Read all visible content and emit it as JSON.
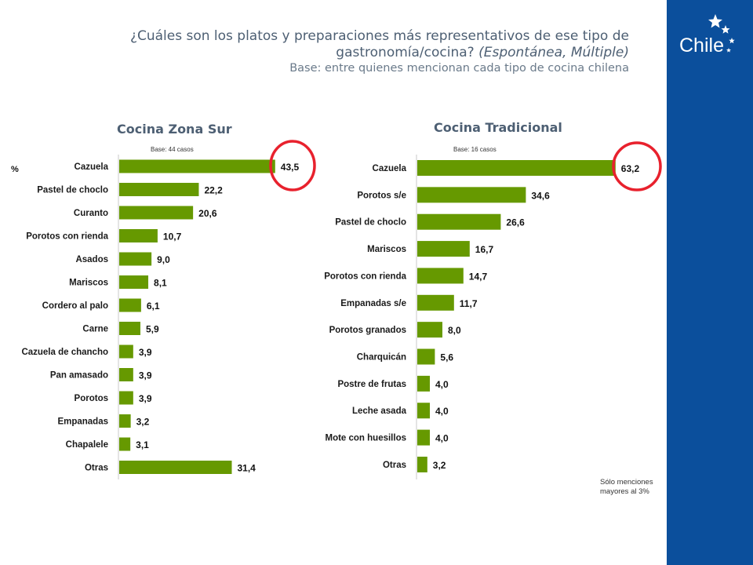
{
  "header": {
    "question": "¿Cuáles son los platos y preparaciones más representativos de ese tipo de gastronomía/cocina?",
    "qualifier": "(Espontánea, Múltiple)",
    "base": "Base: entre quienes mencionan cada tipo de cocina chilena"
  },
  "brand": {
    "logo_text": "Chile",
    "logo_icon": "star-cluster-icon",
    "bar_color": "#0b4f9c"
  },
  "colors": {
    "bar": "#669900",
    "highlight": "#e8212d"
  },
  "footnote": "Sólo menciones mayores al 3%",
  "chart_data": [
    {
      "type": "bar",
      "orientation": "horizontal",
      "title": "Cocina Zona Sur",
      "base_note": "Base: 44 casos",
      "unit_label": "%",
      "categories": [
        "Cazuela",
        "Pastel de choclo",
        "Curanto",
        "Porotos con rienda",
        "Asados",
        "Mariscos",
        "Cordero al palo",
        "Carne",
        "Cazuela de chancho",
        "Pan amasado",
        "Porotos",
        "Empanadas",
        "Chapalele",
        "Otras"
      ],
      "values": [
        43.5,
        22.2,
        20.6,
        10.7,
        9.0,
        8.1,
        6.1,
        5.9,
        3.9,
        3.9,
        3.9,
        3.2,
        3.1,
        31.4
      ],
      "value_labels": [
        "43,5",
        "22,2",
        "20,6",
        "10,7",
        "9,0",
        "8,1",
        "6,1",
        "5,9",
        "3,9",
        "3,9",
        "3,9",
        "3,2",
        "3,1",
        "31,4"
      ],
      "highlighted": "Cazuela",
      "grid": false,
      "legend": "none"
    },
    {
      "type": "bar",
      "orientation": "horizontal",
      "title": "Cocina Tradicional",
      "base_note": "Base: 16 casos",
      "categories": [
        "Cazuela",
        "Porotos s/e",
        "Pastel de choclo",
        "Mariscos",
        "Porotos con rienda",
        "Empanadas s/e",
        "Porotos granados",
        "Charquicán",
        "Postre de frutas",
        "Leche asada",
        "Mote con huesillos",
        "Otras"
      ],
      "values": [
        63.2,
        34.6,
        26.6,
        16.7,
        14.7,
        11.7,
        8.0,
        5.6,
        4.0,
        4.0,
        4.0,
        3.2
      ],
      "value_labels": [
        "63,2",
        "34,6",
        "26,6",
        "16,7",
        "14,7",
        "11,7",
        "8,0",
        "5,6",
        "4,0",
        "4,0",
        "4,0",
        "3,2"
      ],
      "highlighted": "Cazuela",
      "grid": false,
      "legend": "none"
    }
  ]
}
